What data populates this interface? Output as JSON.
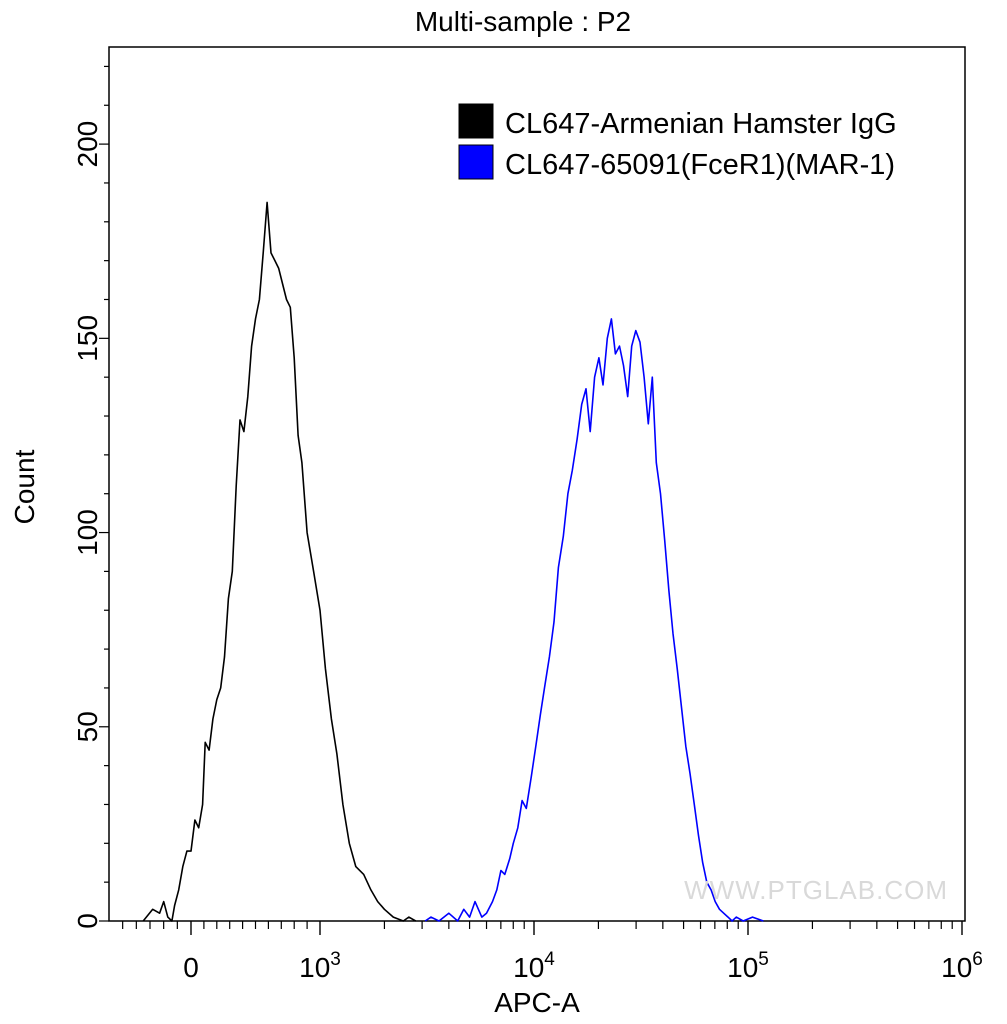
{
  "chart_data": {
    "type": "histogram",
    "title": "Multi-sample : P2",
    "xlabel": "APC-A",
    "ylabel": "Count",
    "x_scale": "biexponential (logicle)",
    "xlim": [
      -500,
      1000000
    ],
    "ylim": [
      0,
      225
    ],
    "y_ticks": [
      0,
      50,
      100,
      150,
      200
    ],
    "x_ticks": [
      {
        "value": 0,
        "base": "0",
        "exp": ""
      },
      {
        "value": 1000,
        "base": "10",
        "exp": "3"
      },
      {
        "value": 10000,
        "base": "10",
        "exp": "4"
      },
      {
        "value": 100000,
        "base": "10",
        "exp": "5"
      },
      {
        "value": 1000000,
        "base": "10",
        "exp": "6"
      }
    ],
    "legend_position": "top-right",
    "series": [
      {
        "name": "CL647-Armenian Hamster IgG",
        "color": "#000000",
        "points": [
          [
            -350,
            0
          ],
          [
            -280,
            3
          ],
          [
            -230,
            2
          ],
          [
            -200,
            5
          ],
          [
            -170,
            1
          ],
          [
            -140,
            0
          ],
          [
            -120,
            4
          ],
          [
            -90,
            8
          ],
          [
            -60,
            14
          ],
          [
            -30,
            18
          ],
          [
            0,
            18
          ],
          [
            30,
            26
          ],
          [
            60,
            24
          ],
          [
            90,
            30
          ],
          [
            110,
            46
          ],
          [
            140,
            44
          ],
          [
            170,
            52
          ],
          [
            200,
            57
          ],
          [
            230,
            60
          ],
          [
            260,
            68
          ],
          [
            290,
            83
          ],
          [
            320,
            90
          ],
          [
            350,
            112
          ],
          [
            380,
            129
          ],
          [
            410,
            126
          ],
          [
            440,
            135
          ],
          [
            470,
            148
          ],
          [
            500,
            155
          ],
          [
            530,
            160
          ],
          [
            560,
            172
          ],
          [
            590,
            185
          ],
          [
            620,
            172
          ],
          [
            650,
            170
          ],
          [
            680,
            168
          ],
          [
            710,
            164
          ],
          [
            740,
            160
          ],
          [
            770,
            158
          ],
          [
            800,
            145
          ],
          [
            830,
            125
          ],
          [
            860,
            118
          ],
          [
            900,
            100
          ],
          [
            950,
            90
          ],
          [
            1000,
            80
          ],
          [
            1060,
            65
          ],
          [
            1130,
            52
          ],
          [
            1200,
            43
          ],
          [
            1280,
            30
          ],
          [
            1370,
            20
          ],
          [
            1470,
            14
          ],
          [
            1600,
            12
          ],
          [
            1730,
            8
          ],
          [
            1860,
            5
          ],
          [
            2000,
            3
          ],
          [
            2200,
            1
          ],
          [
            2450,
            0
          ],
          [
            2600,
            1
          ],
          [
            2800,
            0
          ]
        ]
      },
      {
        "name": "CL647-65091(FceR1)(MAR-1)",
        "color": "#0000ff",
        "points": [
          [
            3100,
            0
          ],
          [
            3300,
            1
          ],
          [
            3600,
            0
          ],
          [
            4000,
            2
          ],
          [
            4400,
            0
          ],
          [
            4700,
            3
          ],
          [
            5000,
            1
          ],
          [
            5300,
            5
          ],
          [
            5700,
            1
          ],
          [
            6000,
            2
          ],
          [
            6400,
            5
          ],
          [
            6700,
            8
          ],
          [
            7000,
            13
          ],
          [
            7300,
            12
          ],
          [
            7700,
            16
          ],
          [
            8000,
            20
          ],
          [
            8400,
            24
          ],
          [
            8800,
            31
          ],
          [
            9200,
            29
          ],
          [
            9700,
            37
          ],
          [
            10200,
            45
          ],
          [
            10700,
            53
          ],
          [
            11200,
            60
          ],
          [
            11800,
            68
          ],
          [
            12400,
            77
          ],
          [
            13000,
            91
          ],
          [
            13700,
            99
          ],
          [
            14400,
            110
          ],
          [
            15100,
            116
          ],
          [
            15900,
            124
          ],
          [
            16700,
            133
          ],
          [
            17500,
            137
          ],
          [
            18300,
            126
          ],
          [
            19200,
            140
          ],
          [
            20100,
            145
          ],
          [
            21000,
            138
          ],
          [
            22000,
            150
          ],
          [
            23000,
            155
          ],
          [
            24000,
            146
          ],
          [
            25100,
            148
          ],
          [
            26200,
            143
          ],
          [
            27400,
            135
          ],
          [
            28600,
            148
          ],
          [
            29900,
            152
          ],
          [
            31300,
            149
          ],
          [
            32700,
            140
          ],
          [
            34200,
            128
          ],
          [
            35700,
            140
          ],
          [
            37300,
            118
          ],
          [
            39000,
            110
          ],
          [
            40800,
            98
          ],
          [
            42700,
            85
          ],
          [
            44600,
            74
          ],
          [
            46700,
            65
          ],
          [
            48900,
            55
          ],
          [
            51200,
            45
          ],
          [
            53600,
            38
          ],
          [
            56100,
            30
          ],
          [
            58700,
            22
          ],
          [
            61400,
            15
          ],
          [
            64200,
            10
          ],
          [
            67200,
            8
          ],
          [
            70300,
            5
          ],
          [
            73600,
            3
          ],
          [
            77000,
            2
          ],
          [
            80600,
            1
          ],
          [
            84300,
            0
          ],
          [
            88200,
            1
          ],
          [
            95000,
            0
          ],
          [
            105000,
            1
          ],
          [
            118000,
            0
          ]
        ]
      }
    ]
  },
  "watermark": "WWW.PTGLAB.COM"
}
